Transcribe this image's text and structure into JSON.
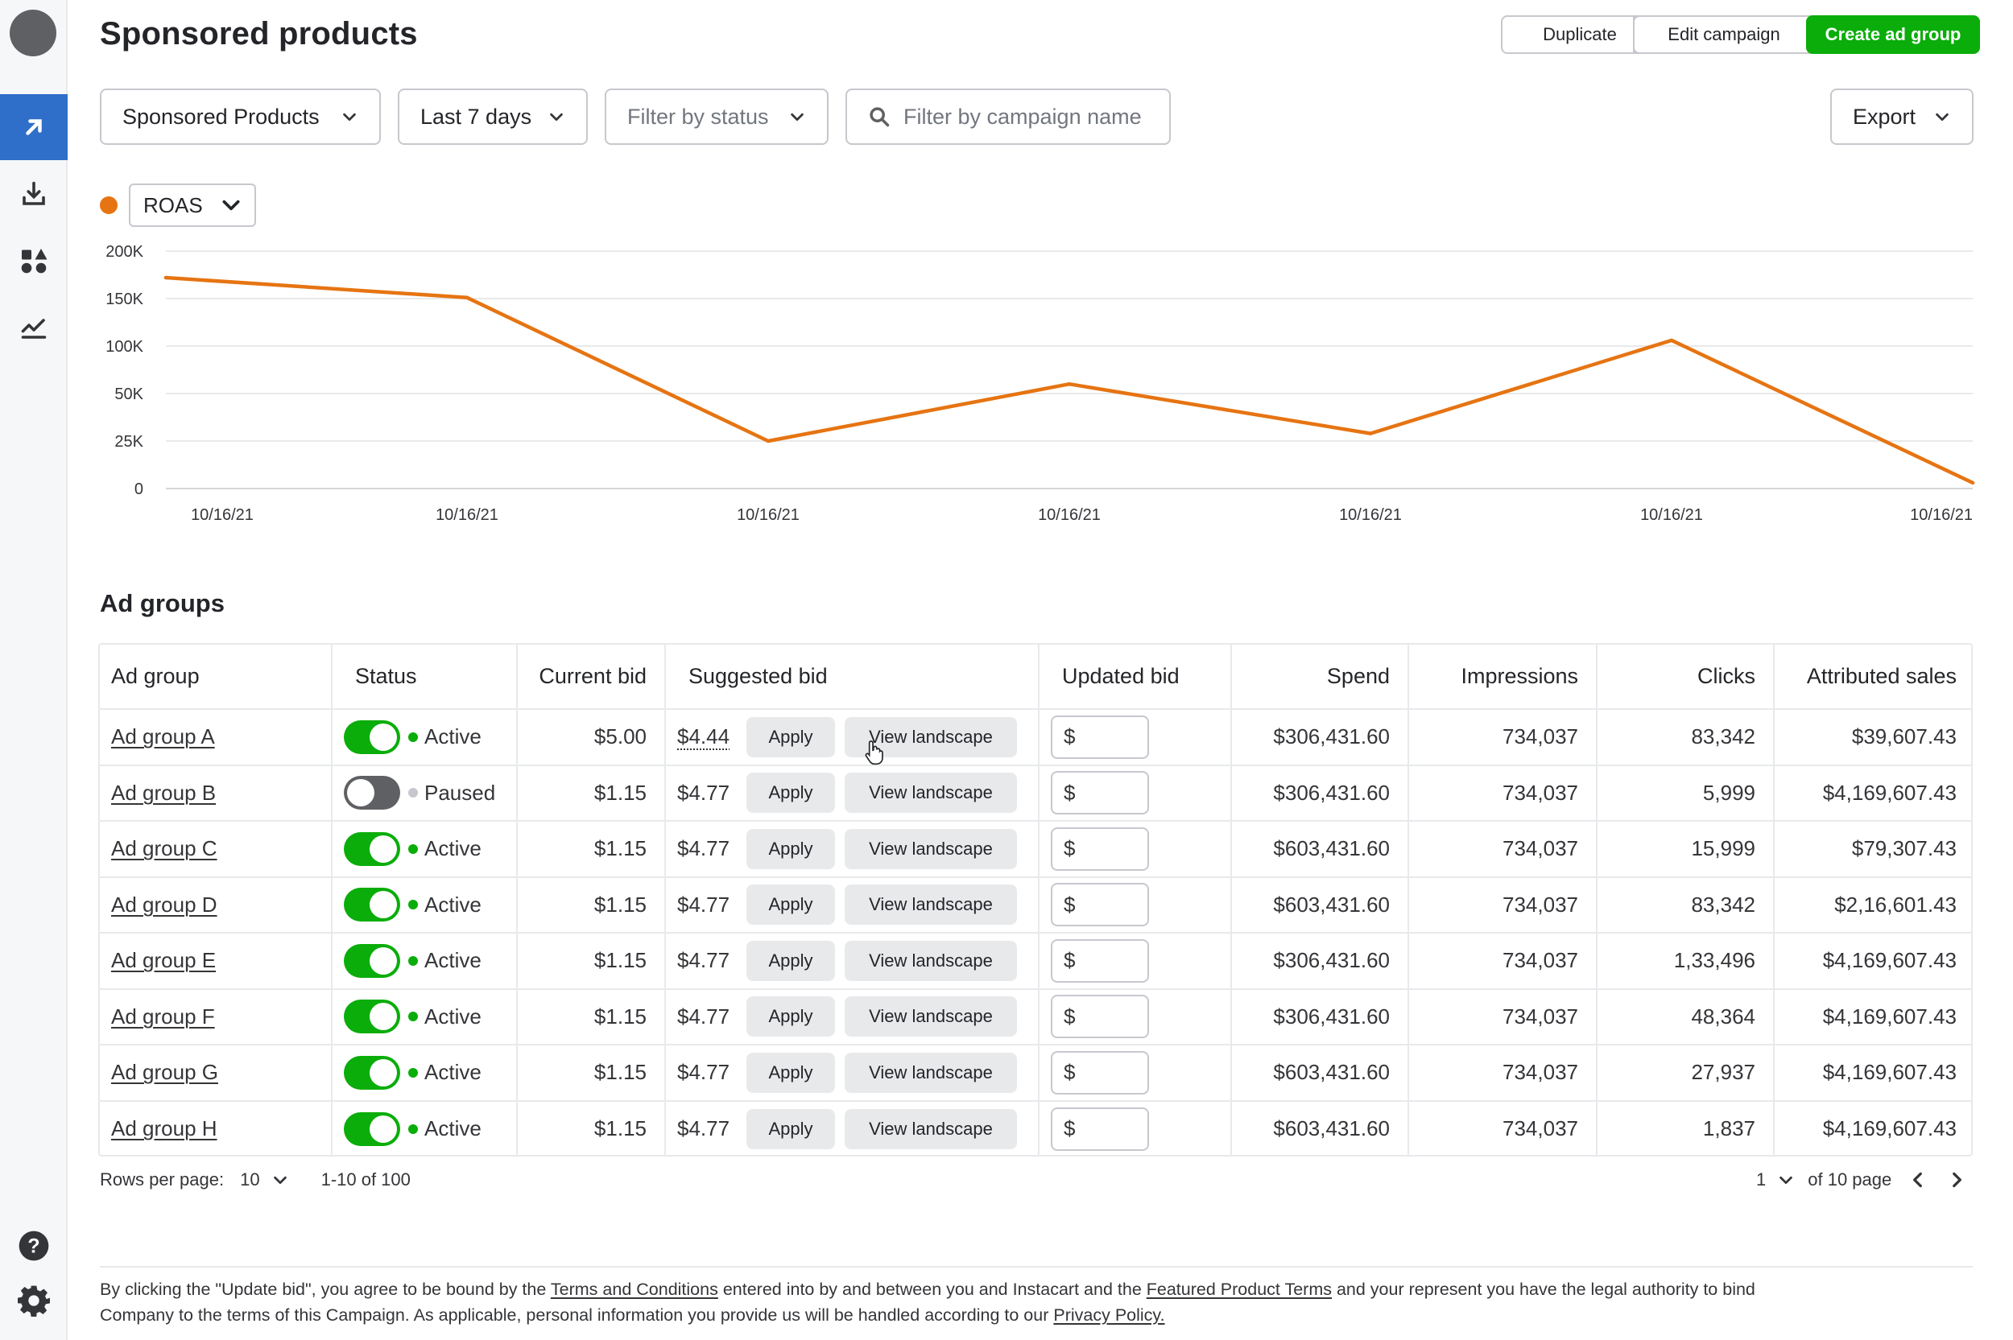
{
  "page": {
    "title": "Sponsored products",
    "actions": {
      "duplicate": "Duplicate",
      "edit": "Edit campaign",
      "create": "Create ad group"
    }
  },
  "filters": {
    "product_type": "Sponsored Products",
    "date_range": "Last 7 days",
    "status_placeholder": "Filter by status",
    "search_placeholder": "Filter by campaign name",
    "export": "Export"
  },
  "chart_data": {
    "type": "line",
    "metric": "ROAS",
    "color": "#e67412",
    "x": [
      "10/16/21",
      "10/16/21",
      "10/16/21",
      "10/16/21",
      "10/16/21",
      "10/16/21",
      "10/16/21"
    ],
    "y_ticks": [
      "0",
      "25K",
      "50K",
      "100K",
      "150K",
      "200K"
    ],
    "series": [
      {
        "values": [
          172000,
          151000,
          25000,
          60000,
          29000,
          106000,
          3000
        ]
      }
    ],
    "grid": true
  },
  "section": {
    "title": "Ad groups"
  },
  "table": {
    "headers": {
      "ad_group": "Ad group",
      "status": "Status",
      "current_bid": "Current bid",
      "suggested_bid": "Suggested bid",
      "updated_bid": "Updated bid",
      "spend": "Spend",
      "impressions": "Impressions",
      "clicks": "Clicks",
      "attributed_sales": "Attributed sales"
    },
    "apply_label": "Apply",
    "landscape_label": "View landscape",
    "currency_prefix": "$",
    "rows": [
      {
        "name": "Ad group A",
        "status": "Active",
        "current_bid": "$5.00",
        "suggested_bid": "$4.44",
        "spend": "$306,431.60",
        "impressions": "734,037",
        "clicks": "83,342",
        "sales": "$39,607.43"
      },
      {
        "name": "Ad group B",
        "status": "Paused",
        "current_bid": "$1.15",
        "suggested_bid": "$4.77",
        "spend": "$306,431.60",
        "impressions": "734,037",
        "clicks": "5,999",
        "sales": "$4,169,607.43"
      },
      {
        "name": "Ad group C",
        "status": "Active",
        "current_bid": "$1.15",
        "suggested_bid": "$4.77",
        "spend": "$603,431.60",
        "impressions": "734,037",
        "clicks": "15,999",
        "sales": "$79,307.43"
      },
      {
        "name": "Ad group D",
        "status": "Active",
        "current_bid": "$1.15",
        "suggested_bid": "$4.77",
        "spend": "$603,431.60",
        "impressions": "734,037",
        "clicks": "83,342",
        "sales": "$2,16,601.43"
      },
      {
        "name": "Ad group E",
        "status": "Active",
        "current_bid": "$1.15",
        "suggested_bid": "$4.77",
        "spend": "$306,431.60",
        "impressions": "734,037",
        "clicks": "1,33,496",
        "sales": "$4,169,607.43"
      },
      {
        "name": "Ad group F",
        "status": "Active",
        "current_bid": "$1.15",
        "suggested_bid": "$4.77",
        "spend": "$306,431.60",
        "impressions": "734,037",
        "clicks": "48,364",
        "sales": "$4,169,607.43"
      },
      {
        "name": "Ad group G",
        "status": "Active",
        "current_bid": "$1.15",
        "suggested_bid": "$4.77",
        "spend": "$603,431.60",
        "impressions": "734,037",
        "clicks": "27,937",
        "sales": "$4,169,607.43"
      },
      {
        "name": "Ad group H",
        "status": "Active",
        "current_bid": "$1.15",
        "suggested_bid": "$4.77",
        "spend": "$603,431.60",
        "impressions": "734,037",
        "clicks": "1,837",
        "sales": "$4,169,607.43"
      }
    ]
  },
  "pagination": {
    "rows_label": "Rows per page:",
    "rows_value": "10",
    "range": "1-10 of 100",
    "page": "1",
    "of_pages": "of 10 page"
  },
  "footer": {
    "t1": "By clicking the \"Update bid\", you agree to be bound by the ",
    "l1": "Terms and Conditions",
    "t2": " entered into by and between you and Instacart and the ",
    "l2": "Featured Product Terms",
    "t3": " and your represent you have the legal authority to bind Company to the terms of this Campaign. As applicable, personal information you provide us will be handled according to our ",
    "l3": "Privacy Policy."
  }
}
